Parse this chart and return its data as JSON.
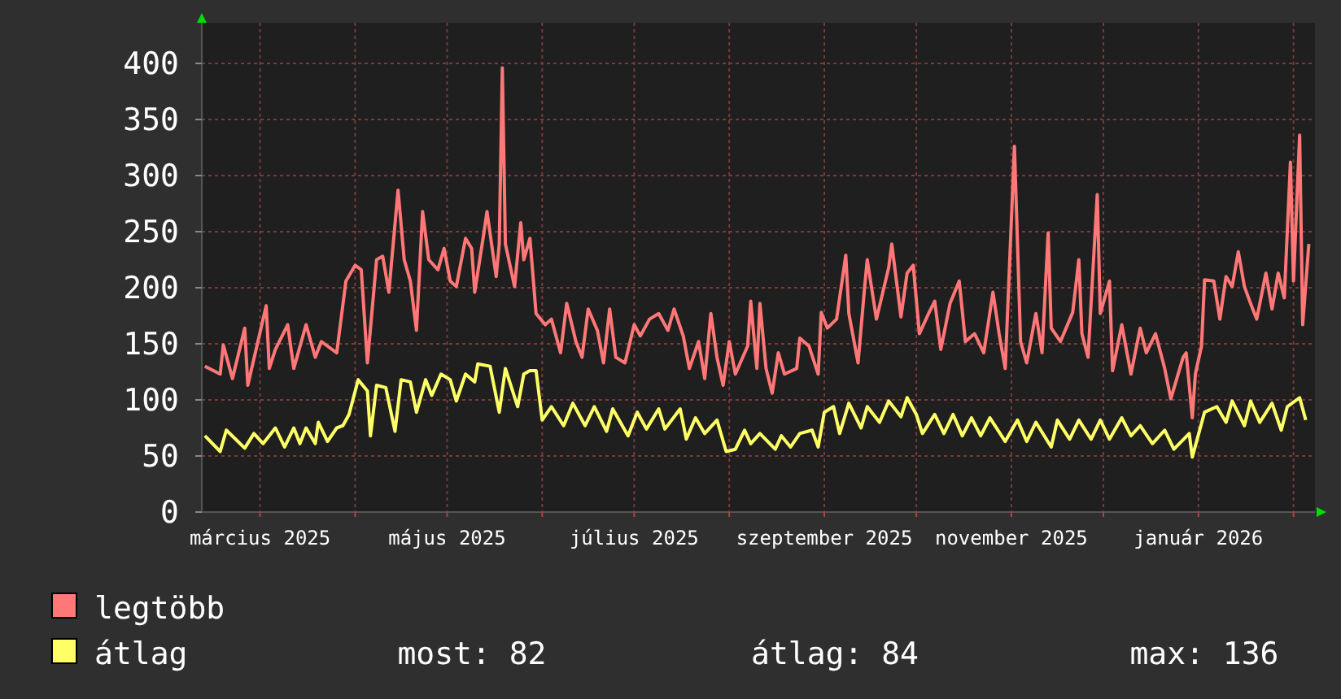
{
  "chart_data": {
    "type": "line",
    "xlim": [
      "2025-02-10",
      "2026-02-08"
    ],
    "xticks": [
      {
        "value": "2025-03-01",
        "label": "március 2025"
      },
      {
        "value": "2025-04-01",
        "label": null
      },
      {
        "value": "2025-05-01",
        "label": "május 2025"
      },
      {
        "value": "2025-06-01",
        "label": null
      },
      {
        "value": "2025-07-01",
        "label": "július 2025"
      },
      {
        "value": "2025-08-01",
        "label": null
      },
      {
        "value": "2025-09-01",
        "label": "szeptember 2025"
      },
      {
        "value": "2025-10-01",
        "label": null
      },
      {
        "value": "2025-11-01",
        "label": "november 2025"
      },
      {
        "value": "2025-12-01",
        "label": null
      },
      {
        "value": "2026-01-01",
        "label": "január 2026"
      },
      {
        "value": "2026-02-01",
        "label": null
      }
    ],
    "ylim": [
      0,
      400
    ],
    "yticks": [
      0,
      50,
      100,
      150,
      200,
      250,
      300,
      350,
      400
    ],
    "grid": true,
    "legend": "bottom",
    "marker": "none",
    "line_style": "solid",
    "annotations": [
      "most: 82",
      "átlag: 84",
      "max: 136"
    ],
    "series": [
      {
        "name": "legtöbb",
        "color": "#ff7777",
        "x": [
          "2025-02-11",
          "2025-02-16",
          "2025-02-17",
          "2025-02-20",
          "2025-02-24",
          "2025-02-25",
          "2025-03-03",
          "2025-03-04",
          "2025-03-06",
          "2025-03-10",
          "2025-03-12",
          "2025-03-16",
          "2025-03-19",
          "2025-03-21",
          "2025-03-26",
          "2025-03-29",
          "2025-04-01",
          "2025-04-03",
          "2025-04-05",
          "2025-04-08",
          "2025-04-10",
          "2025-04-12",
          "2025-04-15",
          "2025-04-17",
          "2025-04-19",
          "2025-04-21",
          "2025-04-23",
          "2025-04-25",
          "2025-04-28",
          "2025-04-30",
          "2025-05-02",
          "2025-05-04",
          "2025-05-07",
          "2025-05-09",
          "2025-05-10",
          "2025-05-13",
          "2025-05-14",
          "2025-05-17",
          "2025-05-18",
          "2025-05-19",
          "2025-05-20",
          "2025-05-23",
          "2025-05-25",
          "2025-05-26",
          "2025-05-28",
          "2025-05-30",
          "2025-06-02",
          "2025-06-04",
          "2025-06-07",
          "2025-06-09",
          "2025-06-12",
          "2025-06-14",
          "2025-06-16",
          "2025-06-19",
          "2025-06-21",
          "2025-06-23",
          "2025-06-25",
          "2025-06-28",
          "2025-07-01",
          "2025-07-03",
          "2025-07-06",
          "2025-07-09",
          "2025-07-12",
          "2025-07-14",
          "2025-07-17",
          "2025-07-19",
          "2025-07-22",
          "2025-07-24",
          "2025-07-26",
          "2025-07-28",
          "2025-07-30",
          "2025-08-01",
          "2025-08-03",
          "2025-08-07",
          "2025-08-08",
          "2025-08-10",
          "2025-08-11",
          "2025-08-13",
          "2025-08-15",
          "2025-08-17",
          "2025-08-19",
          "2025-08-23",
          "2025-08-24",
          "2025-08-27",
          "2025-08-30",
          "2025-08-31",
          "2025-09-02",
          "2025-09-05",
          "2025-09-08",
          "2025-09-09",
          "2025-09-12",
          "2025-09-14",
          "2025-09-15",
          "2025-09-18",
          "2025-09-22",
          "2025-09-23",
          "2025-09-26",
          "2025-09-28",
          "2025-09-30",
          "2025-10-02",
          "2025-10-05",
          "2025-10-07",
          "2025-10-09",
          "2025-10-12",
          "2025-10-15",
          "2025-10-17",
          "2025-10-20",
          "2025-10-23",
          "2025-10-26",
          "2025-10-28",
          "2025-10-30",
          "2025-11-02",
          "2025-11-04",
          "2025-11-06",
          "2025-11-09",
          "2025-11-11",
          "2025-11-13",
          "2025-11-14",
          "2025-11-17",
          "2025-11-21",
          "2025-11-23",
          "2025-11-24",
          "2025-11-26",
          "2025-11-29",
          "2025-11-30",
          "2025-12-03",
          "2025-12-04",
          "2025-12-07",
          "2025-12-10",
          "2025-12-13",
          "2025-12-15",
          "2025-12-18",
          "2025-12-21",
          "2025-12-23",
          "2025-12-27",
          "2025-12-28",
          "2025-12-30",
          "2025-12-31",
          "2026-01-02",
          "2026-01-03",
          "2026-01-06",
          "2026-01-08",
          "2026-01-10",
          "2026-01-12",
          "2026-01-14",
          "2026-01-16",
          "2026-01-18",
          "2026-01-20",
          "2026-01-23",
          "2026-01-25",
          "2026-01-27",
          "2026-01-29",
          "2026-01-31",
          "2026-02-01",
          "2026-02-03",
          "2026-02-04",
          "2026-02-06"
        ],
        "values": [
          130,
          123,
          149,
          119,
          164,
          113,
          184,
          128,
          145,
          167,
          128,
          167,
          138,
          152,
          142,
          206,
          220,
          216,
          133,
          225,
          228,
          196,
          287,
          225,
          206,
          162,
          268,
          225,
          216,
          235,
          206,
          201,
          244,
          235,
          196,
          249,
          268,
          210,
          239,
          396,
          239,
          201,
          258,
          225,
          244,
          177,
          167,
          172,
          142,
          186,
          152,
          138,
          181,
          162,
          133,
          181,
          138,
          133,
          167,
          157,
          172,
          177,
          162,
          181,
          157,
          128,
          152,
          119,
          177,
          138,
          113,
          152,
          123,
          148,
          188,
          128,
          186,
          128,
          106,
          142,
          123,
          128,
          155,
          148,
          123,
          178,
          164,
          172,
          229,
          177,
          133,
          196,
          225,
          172,
          218,
          239,
          174,
          213,
          220,
          159,
          177,
          188,
          145,
          186,
          206,
          152,
          159,
          142,
          196,
          159,
          128,
          326,
          152,
          133,
          177,
          142,
          249,
          164,
          152,
          178,
          225,
          159,
          138,
          283,
          177,
          206,
          126,
          167,
          123,
          164,
          142,
          159,
          128,
          101,
          138,
          142,
          84,
          123,
          148,
          207,
          206,
          172,
          210,
          201,
          232,
          201,
          186,
          172,
          213,
          181,
          213,
          191,
          312,
          206,
          336,
          167,
          239
        ]
      },
      {
        "name": "átlag",
        "color": "#ffff66",
        "x": [
          "2025-02-11",
          "2025-02-16",
          "2025-02-18",
          "2025-02-21",
          "2025-02-24",
          "2025-02-27",
          "2025-03-02",
          "2025-03-06",
          "2025-03-09",
          "2025-03-12",
          "2025-03-14",
          "2025-03-16",
          "2025-03-19",
          "2025-03-20",
          "2025-03-23",
          "2025-03-26",
          "2025-03-28",
          "2025-03-30",
          "2025-04-02",
          "2025-04-05",
          "2025-04-06",
          "2025-04-08",
          "2025-04-11",
          "2025-04-14",
          "2025-04-16",
          "2025-04-19",
          "2025-04-21",
          "2025-04-24",
          "2025-04-26",
          "2025-04-29",
          "2025-05-02",
          "2025-05-04",
          "2025-05-07",
          "2025-05-10",
          "2025-05-11",
          "2025-05-15",
          "2025-05-18",
          "2025-05-20",
          "2025-05-24",
          "2025-05-26",
          "2025-05-28",
          "2025-05-30",
          "2025-06-01",
          "2025-06-04",
          "2025-06-08",
          "2025-06-11",
          "2025-06-15",
          "2025-06-18",
          "2025-06-22",
          "2025-06-24",
          "2025-06-29",
          "2025-07-02",
          "2025-07-05",
          "2025-07-09",
          "2025-07-11",
          "2025-07-16",
          "2025-07-18",
          "2025-07-21",
          "2025-07-24",
          "2025-07-28",
          "2025-07-31",
          "2025-08-03",
          "2025-08-06",
          "2025-08-08",
          "2025-08-11",
          "2025-08-16",
          "2025-08-18",
          "2025-08-21",
          "2025-08-24",
          "2025-08-28",
          "2025-08-30",
          "2025-09-01",
          "2025-09-04",
          "2025-09-06",
          "2025-09-09",
          "2025-09-13",
          "2025-09-15",
          "2025-09-19",
          "2025-09-22",
          "2025-09-26",
          "2025-09-28",
          "2025-10-01",
          "2025-10-03",
          "2025-10-07",
          "2025-10-10",
          "2025-10-13",
          "2025-10-16",
          "2025-10-19",
          "2025-10-22",
          "2025-10-25",
          "2025-10-30",
          "2025-11-03",
          "2025-11-06",
          "2025-11-09",
          "2025-11-14",
          "2025-11-16",
          "2025-11-20",
          "2025-11-23",
          "2025-11-27",
          "2025-11-30",
          "2025-12-03",
          "2025-12-07",
          "2025-12-10",
          "2025-12-13",
          "2025-12-17",
          "2025-12-21",
          "2025-12-24",
          "2025-12-29",
          "2025-12-30",
          "2026-01-03",
          "2026-01-07",
          "2026-01-10",
          "2026-01-12",
          "2026-01-16",
          "2026-01-18",
          "2026-01-21",
          "2026-01-25",
          "2026-01-28",
          "2026-01-30",
          "2026-02-03",
          "2026-02-05"
        ],
        "values": [
          68,
          54,
          73,
          65,
          57,
          70,
          61,
          75,
          58,
          75,
          61,
          75,
          61,
          80,
          63,
          75,
          77,
          87,
          118,
          108,
          68,
          113,
          111,
          72,
          118,
          116,
          89,
          118,
          104,
          123,
          118,
          99,
          123,
          116,
          132,
          130,
          89,
          128,
          94,
          123,
          126,
          126,
          82,
          94,
          77,
          97,
          77,
          94,
          72,
          92,
          68,
          89,
          74,
          92,
          74,
          92,
          65,
          84,
          70,
          82,
          54,
          56,
          73,
          61,
          70,
          56,
          68,
          58,
          70,
          73,
          58,
          89,
          94,
          70,
          97,
          75,
          94,
          80,
          99,
          85,
          102,
          87,
          70,
          87,
          70,
          87,
          68,
          84,
          68,
          84,
          63,
          82,
          63,
          80,
          58,
          82,
          65,
          82,
          65,
          82,
          65,
          84,
          68,
          77,
          61,
          73,
          56,
          70,
          49,
          89,
          94,
          80,
          99,
          77,
          99,
          80,
          97,
          73,
          94,
          102,
          82
        ]
      }
    ]
  }
}
